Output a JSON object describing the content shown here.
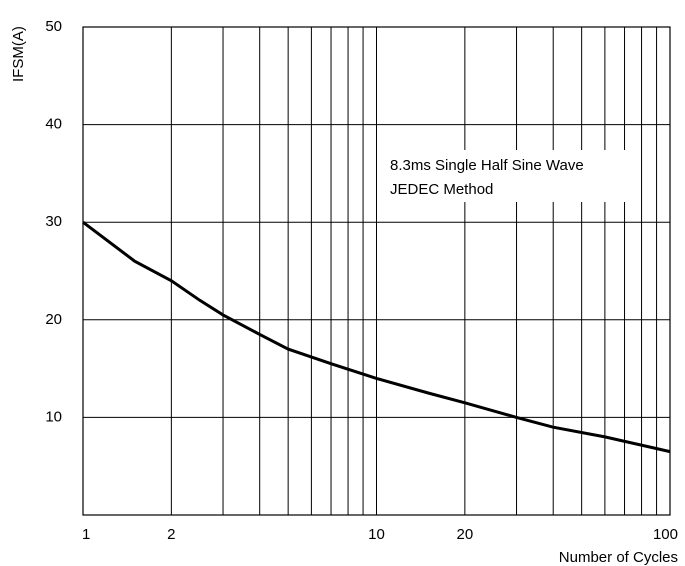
{
  "chart_data": {
    "type": "line",
    "xscale": "log",
    "xlim": [
      1,
      100
    ],
    "ylim": [
      0,
      50
    ],
    "grid": true,
    "xlabel": "Number of Cycles",
    "ylabel": "IFSM(A)",
    "x_ticks": [
      1,
      2,
      10,
      20,
      100
    ],
    "x_tick_labels": [
      "1",
      "2",
      "10",
      "20",
      "100"
    ],
    "y_ticks": [
      10,
      20,
      30,
      40,
      50
    ],
    "y_tick_labels": [
      "10",
      "20",
      "30",
      "40",
      "50"
    ],
    "annotation": [
      "8.3ms Single Half Sine Wave",
      "JEDEC Method"
    ],
    "series": [
      {
        "x": [
          1,
          1.5,
          2,
          2.5,
          3,
          4,
          5,
          7,
          10,
          15,
          20,
          30,
          40,
          60,
          100
        ],
        "y": [
          30,
          26,
          24,
          22,
          20.5,
          18.5,
          17,
          15.5,
          14,
          12.5,
          11.5,
          10,
          9,
          8,
          6.5
        ]
      }
    ]
  }
}
